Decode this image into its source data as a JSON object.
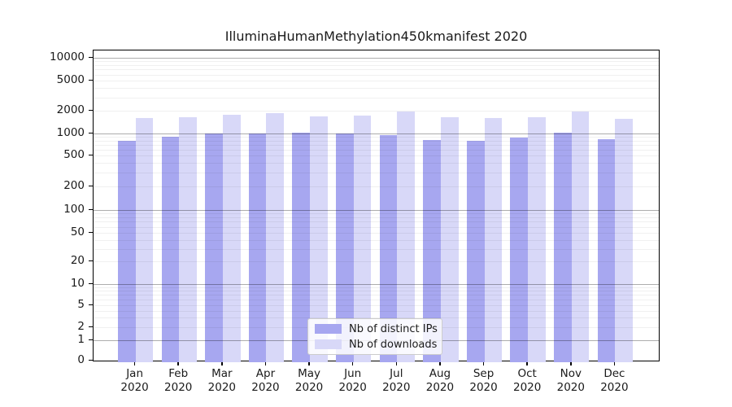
{
  "figure": {
    "title": "IlluminaHumanMethylation450kmanifest 2020"
  },
  "chart_data": {
    "type": "bar",
    "title": "IlluminaHumanMethylation450kmanifest 2020",
    "categories": [
      "Jan",
      "Feb",
      "Mar",
      "Apr",
      "May",
      "Jun",
      "Jul",
      "Aug",
      "Sep",
      "Oct",
      "Nov",
      "Dec"
    ],
    "category_year": "2020",
    "series": [
      {
        "name": "Nb of distinct IPs",
        "color": "#a7a7f0",
        "values": [
          800,
          900,
          1010,
          1010,
          1020,
          1010,
          940,
          815,
          800,
          890,
          1020,
          830
        ]
      },
      {
        "name": "Nb of downloads",
        "color": "#d8d8f8",
        "values": [
          1620,
          1640,
          1770,
          1845,
          1695,
          1735,
          1935,
          1625,
          1620,
          1635,
          1945,
          1555
        ]
      }
    ],
    "yticks": [
      10000,
      5000,
      2000,
      1000,
      500,
      200,
      100,
      50,
      20,
      10,
      5,
      2,
      1,
      0
    ],
    "yscale": "symlog",
    "ylim": [
      0,
      13000
    ],
    "grid": true,
    "legend_position": "lower center",
    "xlabel": "",
    "ylabel": ""
  },
  "colors": {
    "background": "#ffffff",
    "bar_distinct_ips": "#a7a7f0",
    "bar_downloads": "#d8d8f8",
    "grid_major": "rgba(0,0,0,0.32)",
    "grid_minor": "rgba(0,0,0,0.06)",
    "spine": "#000000",
    "text": "#1a1a1a",
    "legend_border": "#cccccc"
  }
}
